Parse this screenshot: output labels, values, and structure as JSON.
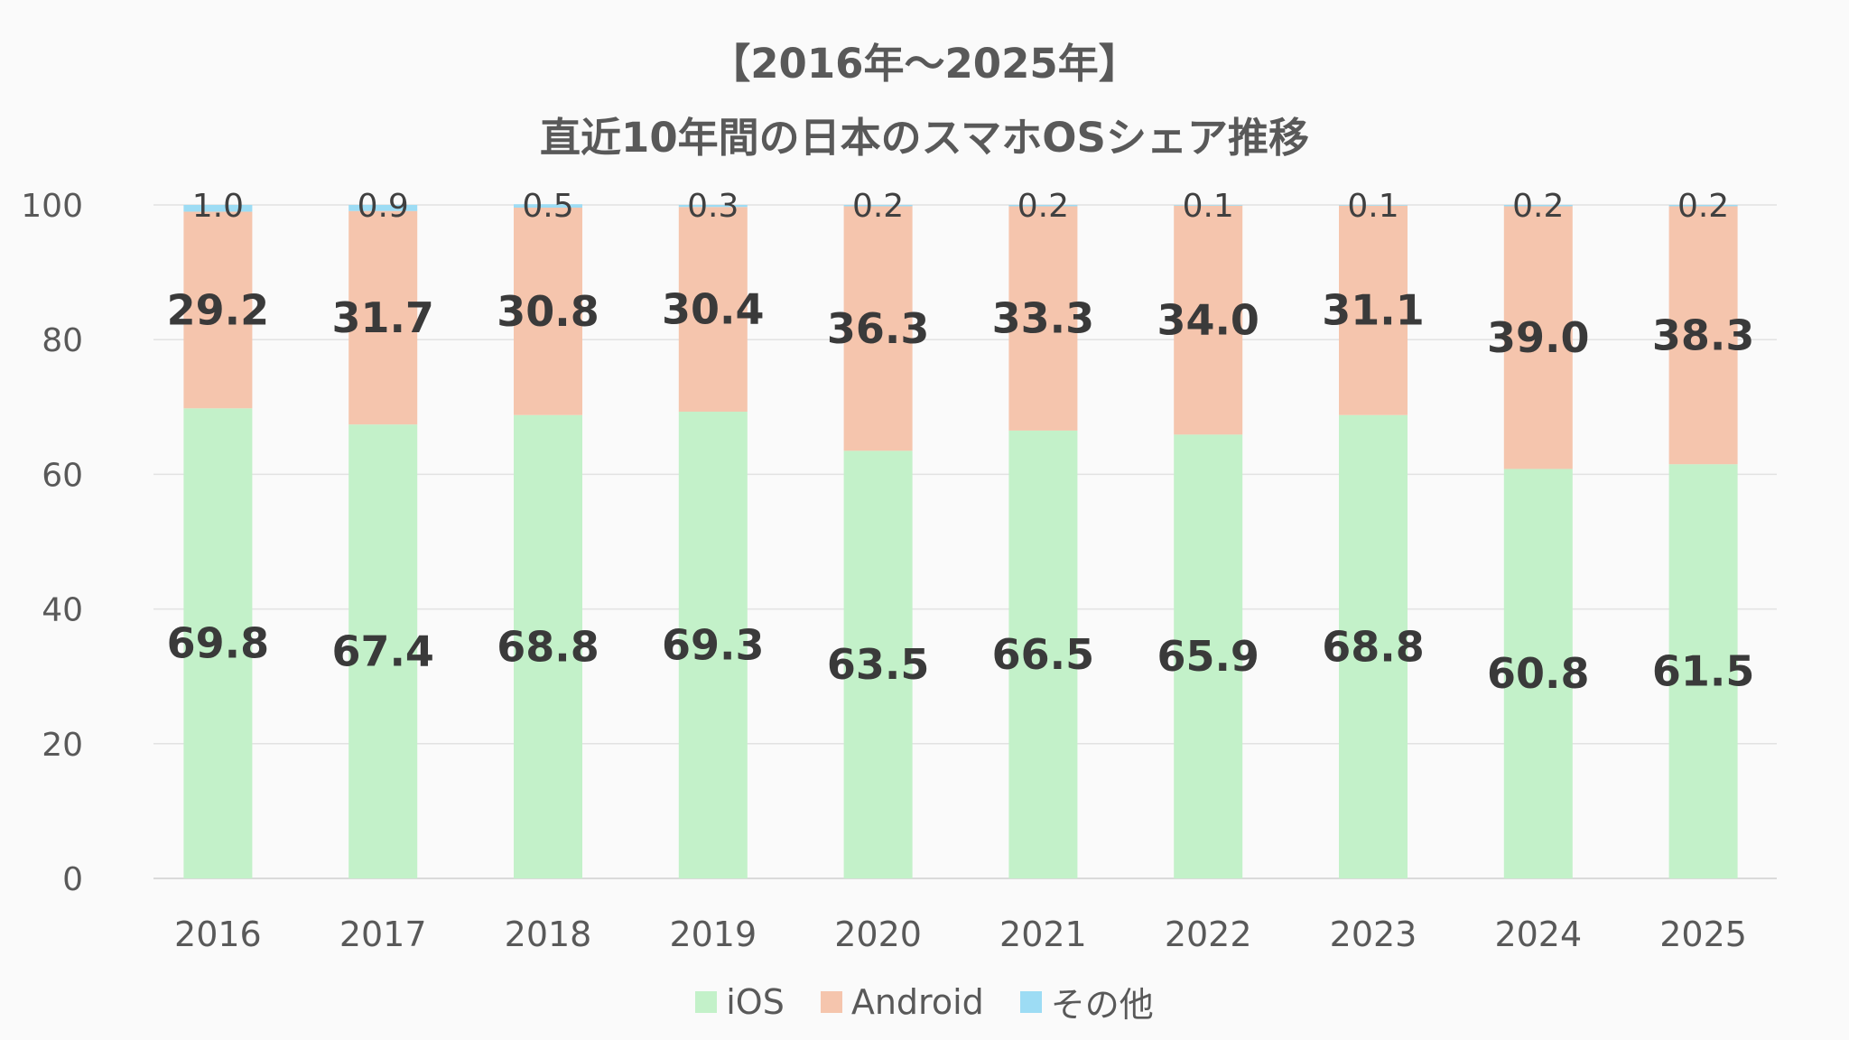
{
  "chart_data": {
    "type": "bar",
    "stacked": true,
    "title_lines": [
      "【2016年～2025年】",
      "直近10年間の日本のスマホOSシェア推移"
    ],
    "xlabel": "",
    "ylabel": "",
    "categories": [
      "2016",
      "2017",
      "2018",
      "2019",
      "2020",
      "2021",
      "2022",
      "2023",
      "2024",
      "2025"
    ],
    "ylim": [
      0,
      100
    ],
    "yticks": [
      0,
      20,
      40,
      60,
      80,
      100
    ],
    "grid": true,
    "legend_position": "bottom",
    "series": [
      {
        "name": "iOS",
        "color": "#c3f1c9",
        "values": [
          69.8,
          67.4,
          68.8,
          69.3,
          63.5,
          66.5,
          65.9,
          68.8,
          60.8,
          61.5
        ],
        "labels": [
          "69.8",
          "67.4",
          "68.8",
          "69.3",
          "63.5",
          "66.5",
          "65.9",
          "68.8",
          "60.8",
          "61.5"
        ]
      },
      {
        "name": "Android",
        "color": "#f5c5ad",
        "values": [
          29.2,
          31.7,
          30.8,
          30.4,
          36.3,
          33.3,
          34.0,
          31.1,
          39.0,
          38.3
        ],
        "labels": [
          "29.2",
          "31.7",
          "30.8",
          "30.4",
          "36.3",
          "33.3",
          "34.0",
          "31.1",
          "39.0",
          "38.3"
        ]
      },
      {
        "name": "その他",
        "color": "#9ddcf4",
        "values": [
          1.0,
          0.9,
          0.5,
          0.3,
          0.2,
          0.2,
          0.1,
          0.1,
          0.2,
          0.2
        ],
        "labels": [
          "1.0",
          "0.9",
          "0.5",
          "0.3",
          "0.2",
          "0.2",
          "0.1",
          "0.1",
          "0.2",
          "0.2"
        ]
      }
    ]
  }
}
